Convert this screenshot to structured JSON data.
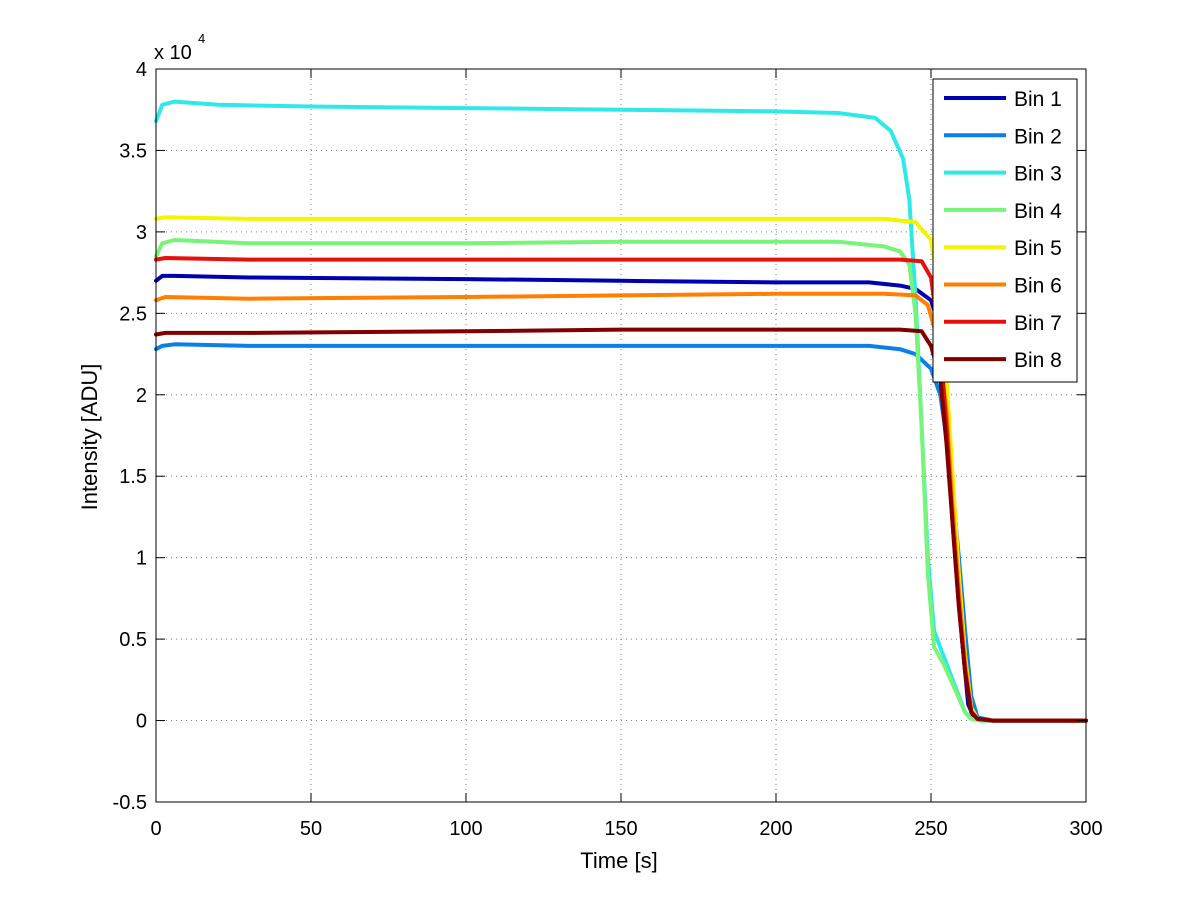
{
  "chart_data": {
    "type": "line",
    "title": "",
    "xlabel": "Time [s]",
    "ylabel": "Intensity [ADU]",
    "y_exponent_label": "x 10",
    "y_exponent": "4",
    "xlim": [
      0,
      300
    ],
    "ylim": [
      -0.5,
      4
    ],
    "x_ticks": [
      0,
      50,
      100,
      150,
      200,
      250,
      300
    ],
    "y_ticks": [
      -0.5,
      0,
      0.5,
      1,
      1.5,
      2,
      2.5,
      3,
      3.5,
      4
    ],
    "x_tick_labels": [
      "0",
      "50",
      "100",
      "150",
      "200",
      "250",
      "300"
    ],
    "y_tick_labels": [
      "-0.5",
      "0",
      "0.5",
      "1",
      "1.5",
      "2",
      "2.5",
      "3",
      "3.5",
      "4"
    ],
    "grid": true,
    "legend_position": "top-right",
    "series": [
      {
        "name": "Bin 1",
        "color": "#0000b3",
        "points": [
          [
            0,
            2.7
          ],
          [
            2,
            2.73
          ],
          [
            6,
            2.73
          ],
          [
            30,
            2.72
          ],
          [
            100,
            2.71
          ],
          [
            150,
            2.7
          ],
          [
            200,
            2.69
          ],
          [
            230,
            2.69
          ],
          [
            240,
            2.67
          ],
          [
            245,
            2.65
          ],
          [
            250,
            2.58
          ],
          [
            253,
            2.4
          ],
          [
            255,
            2.0
          ],
          [
            258,
            1.2
          ],
          [
            260,
            0.5
          ],
          [
            262,
            0.1
          ],
          [
            264,
            0.01
          ],
          [
            270,
            0
          ],
          [
            300,
            0
          ]
        ]
      },
      {
        "name": "Bin 2",
        "color": "#0a7fe8",
        "points": [
          [
            0,
            2.28
          ],
          [
            2,
            2.3
          ],
          [
            6,
            2.31
          ],
          [
            30,
            2.3
          ],
          [
            100,
            2.3
          ],
          [
            150,
            2.3
          ],
          [
            200,
            2.3
          ],
          [
            230,
            2.3
          ],
          [
            240,
            2.28
          ],
          [
            245,
            2.25
          ],
          [
            250,
            2.16
          ],
          [
            253,
            2.0
          ],
          [
            256,
            1.6
          ],
          [
            259,
            1.0
          ],
          [
            261,
            0.55
          ],
          [
            263,
            0.15
          ],
          [
            265,
            0.02
          ],
          [
            270,
            0
          ],
          [
            300,
            0
          ]
        ]
      },
      {
        "name": "Bin 3",
        "color": "#2fe8e8",
        "points": [
          [
            0,
            3.68
          ],
          [
            2,
            3.78
          ],
          [
            6,
            3.8
          ],
          [
            20,
            3.78
          ],
          [
            50,
            3.77
          ],
          [
            100,
            3.76
          ],
          [
            150,
            3.75
          ],
          [
            200,
            3.74
          ],
          [
            220,
            3.73
          ],
          [
            232,
            3.7
          ],
          [
            237,
            3.62
          ],
          [
            241,
            3.45
          ],
          [
            243,
            3.2
          ],
          [
            245,
            2.6
          ],
          [
            247,
            1.8
          ],
          [
            249,
            1.0
          ],
          [
            251,
            0.55
          ],
          [
            254,
            0.4
          ],
          [
            258,
            0.2
          ],
          [
            261,
            0.05
          ],
          [
            263,
            0.01
          ],
          [
            266,
            0
          ],
          [
            300,
            0
          ]
        ]
      },
      {
        "name": "Bin 4",
        "color": "#78f478",
        "points": [
          [
            0,
            2.85
          ],
          [
            2,
            2.93
          ],
          [
            6,
            2.95
          ],
          [
            30,
            2.93
          ],
          [
            100,
            2.93
          ],
          [
            150,
            2.94
          ],
          [
            200,
            2.94
          ],
          [
            220,
            2.94
          ],
          [
            235,
            2.91
          ],
          [
            240,
            2.88
          ],
          [
            243,
            2.8
          ],
          [
            245,
            2.5
          ],
          [
            247,
            1.8
          ],
          [
            249,
            0.9
          ],
          [
            251,
            0.45
          ],
          [
            254,
            0.35
          ],
          [
            258,
            0.18
          ],
          [
            261,
            0.05
          ],
          [
            263,
            0.01
          ],
          [
            266,
            0
          ],
          [
            300,
            0
          ]
        ]
      },
      {
        "name": "Bin 5",
        "color": "#f4f400",
        "points": [
          [
            0,
            3.08
          ],
          [
            3,
            3.09
          ],
          [
            30,
            3.08
          ],
          [
            100,
            3.08
          ],
          [
            150,
            3.08
          ],
          [
            200,
            3.08
          ],
          [
            235,
            3.08
          ],
          [
            245,
            3.06
          ],
          [
            250,
            2.95
          ],
          [
            253,
            2.6
          ],
          [
            255,
            2.1
          ],
          [
            257,
            1.5
          ],
          [
            259,
            0.9
          ],
          [
            261,
            0.4
          ],
          [
            263,
            0.08
          ],
          [
            265,
            0.01
          ],
          [
            270,
            0
          ],
          [
            300,
            0
          ]
        ]
      },
      {
        "name": "Bin 6",
        "color": "#ff8000",
        "points": [
          [
            0,
            2.58
          ],
          [
            3,
            2.6
          ],
          [
            30,
            2.59
          ],
          [
            100,
            2.6
          ],
          [
            150,
            2.61
          ],
          [
            200,
            2.62
          ],
          [
            235,
            2.62
          ],
          [
            245,
            2.61
          ],
          [
            249,
            2.55
          ],
          [
            252,
            2.35
          ],
          [
            255,
            1.9
          ],
          [
            257,
            1.3
          ],
          [
            259,
            0.8
          ],
          [
            261,
            0.35
          ],
          [
            263,
            0.06
          ],
          [
            265,
            0.01
          ],
          [
            270,
            0
          ],
          [
            300,
            0
          ]
        ]
      },
      {
        "name": "Bin 7",
        "color": "#e8100c",
        "points": [
          [
            0,
            2.83
          ],
          [
            3,
            2.84
          ],
          [
            30,
            2.83
          ],
          [
            100,
            2.83
          ],
          [
            150,
            2.83
          ],
          [
            200,
            2.83
          ],
          [
            240,
            2.83
          ],
          [
            247,
            2.82
          ],
          [
            250,
            2.72
          ],
          [
            253,
            2.3
          ],
          [
            255,
            1.8
          ],
          [
            257,
            1.2
          ],
          [
            259,
            0.7
          ],
          [
            261,
            0.3
          ],
          [
            263,
            0.05
          ],
          [
            265,
            0.01
          ],
          [
            270,
            0
          ],
          [
            300,
            0
          ]
        ]
      },
      {
        "name": "Bin 8",
        "color": "#800000",
        "points": [
          [
            0,
            2.37
          ],
          [
            3,
            2.38
          ],
          [
            30,
            2.38
          ],
          [
            100,
            2.39
          ],
          [
            150,
            2.4
          ],
          [
            200,
            2.4
          ],
          [
            240,
            2.4
          ],
          [
            247,
            2.39
          ],
          [
            250,
            2.3
          ],
          [
            253,
            2.1
          ],
          [
            255,
            1.7
          ],
          [
            257,
            1.2
          ],
          [
            259,
            0.7
          ],
          [
            261,
            0.3
          ],
          [
            263,
            0.05
          ],
          [
            265,
            0.01
          ],
          [
            270,
            0
          ],
          [
            300,
            0
          ]
        ]
      }
    ]
  }
}
